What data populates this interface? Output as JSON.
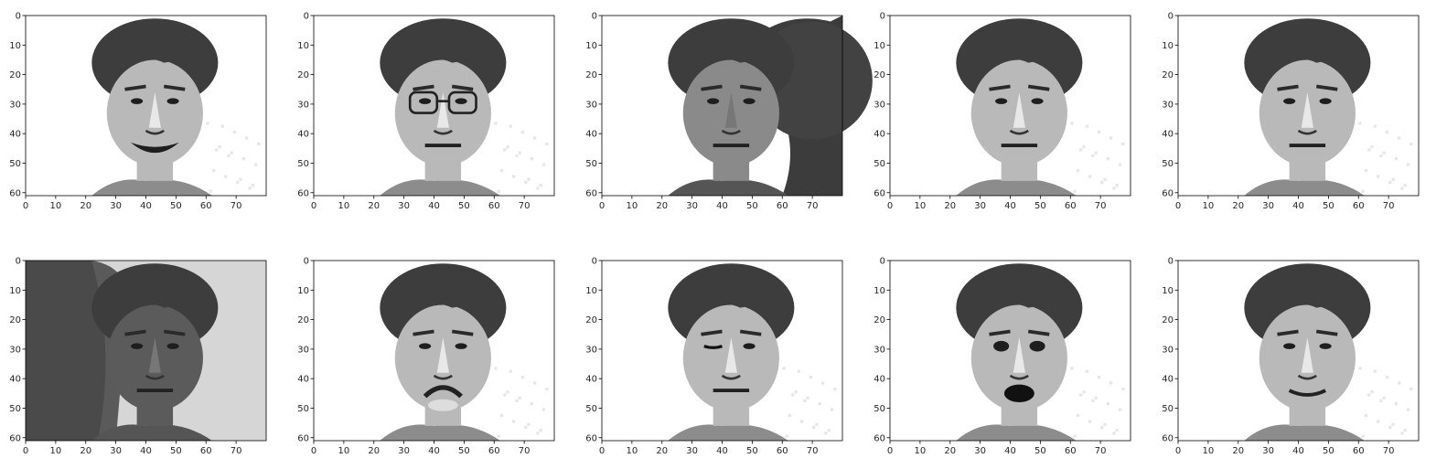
{
  "figure": {
    "colormap": "gray",
    "x_ticks": [
      "0",
      "10",
      "20",
      "30",
      "40",
      "50",
      "60",
      "70"
    ],
    "y_ticks": [
      "0",
      "10",
      "20",
      "30",
      "40",
      "50",
      "60"
    ],
    "x_range": [
      0,
      80
    ],
    "y_range": [
      0,
      61
    ],
    "rows": 2,
    "cols": 5,
    "panels": [
      {
        "name": "face-smile",
        "background": "light",
        "expression": "smile"
      },
      {
        "name": "face-glasses",
        "background": "light",
        "expression": "neutral",
        "glasses": true
      },
      {
        "name": "face-rightlight",
        "background": "dark-shadow-right",
        "expression": "neutral"
      },
      {
        "name": "face-neutral-a",
        "background": "light",
        "expression": "neutral"
      },
      {
        "name": "face-neutral-b",
        "background": "light",
        "expression": "neutral"
      },
      {
        "name": "face-leftlight",
        "background": "dark-noisy-left",
        "expression": "neutral"
      },
      {
        "name": "face-sad",
        "background": "light",
        "expression": "sad"
      },
      {
        "name": "face-wink",
        "background": "light",
        "expression": "wink"
      },
      {
        "name": "face-surprised",
        "background": "light",
        "expression": "surprised"
      },
      {
        "name": "face-neutral-c",
        "background": "light",
        "expression": "slight-smile"
      }
    ]
  }
}
